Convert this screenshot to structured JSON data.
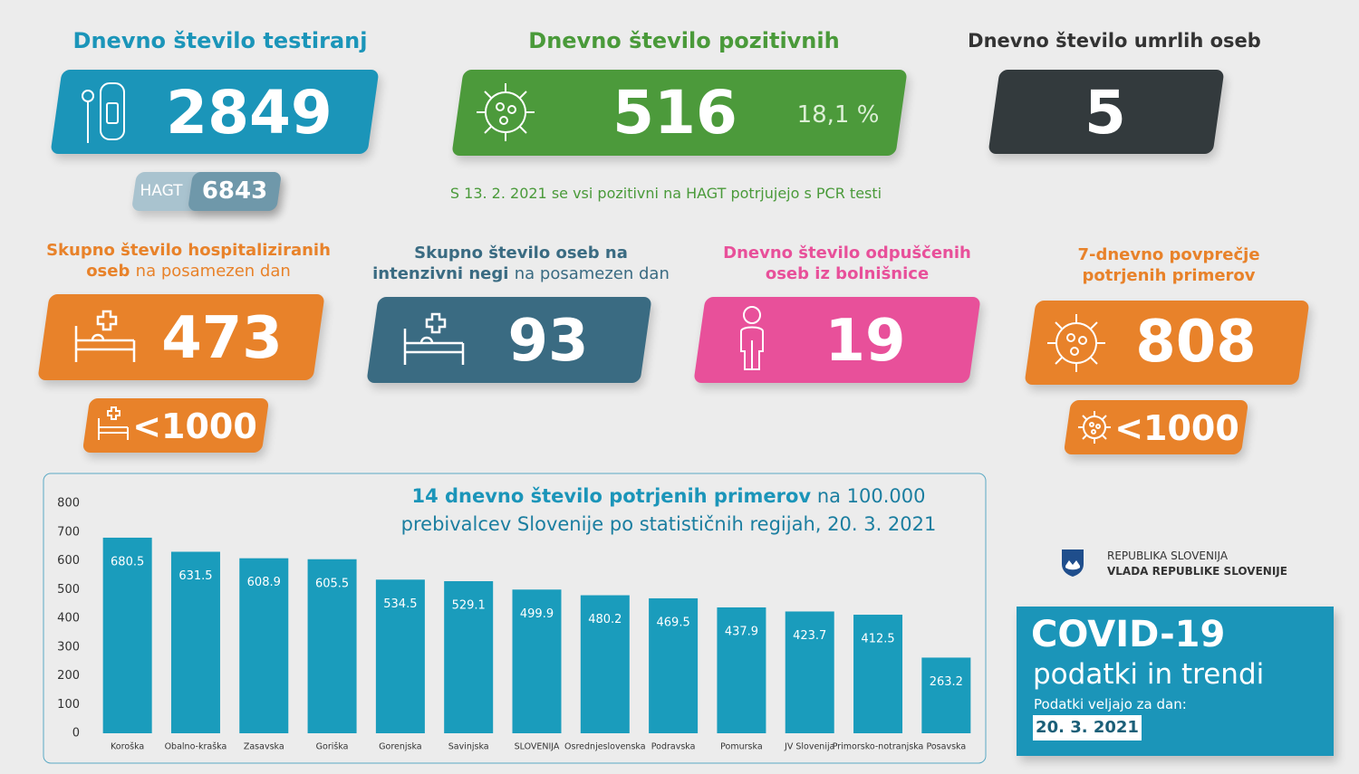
{
  "tests": {
    "title": "Dnevno število testiranj",
    "value": 2849,
    "hagt_label": "HAGT",
    "hagt_value": 6843
  },
  "positive": {
    "title": "Dnevno število pozitivnih",
    "value": 516,
    "share": "18,1 %",
    "note": "S 13. 2. 2021 se vsi pozitivni na HAGT potrjujejo s PCR testi"
  },
  "deaths": {
    "title": "Dnevno število umrlih oseb",
    "value": 5
  },
  "hospitalized": {
    "title": "Skupno število hospitaliziranih oseb",
    "title_rest": "na posamezen dan",
    "value": 473,
    "threshold": "<1000"
  },
  "icu": {
    "title": "Skupno število oseb na intenzivni negi",
    "title_rest": "na posamezen dan",
    "value": 93
  },
  "discharged": {
    "title": "Dnevno število odpuščenih oseb iz bolnišnice",
    "value": 19
  },
  "avg7": {
    "title": "7-dnevno povprečje potrjenih primerov",
    "value": 808,
    "threshold": "<1000"
  },
  "chart_data": {
    "type": "bar",
    "title": "14 dnevno število potrjenih primerov",
    "title_rest": "na 100.000",
    "subtitle": "prebivalcev Slovenije po statističnih regijah, 20. 3. 2021",
    "categories": [
      "Koroška",
      "Obalno-kraška",
      "Zasavska",
      "Goriška",
      "Gorenjska",
      "Savinjska",
      "SLOVENIJA",
      "Osrednjeslovenska",
      "Podravska",
      "Pomurska",
      "JV Slovenija",
      "Primorsko-notranjska",
      "Posavska"
    ],
    "values": [
      680.5,
      631.5,
      608.9,
      605.5,
      534.5,
      529.1,
      499.9,
      480.2,
      469.5,
      437.9,
      423.7,
      412.5,
      263.2
    ],
    "color": "#1a9cbc",
    "ylim": [
      0,
      800
    ],
    "yticks": [
      0,
      100,
      200,
      300,
      400,
      500,
      600,
      700,
      800
    ],
    "grid": false
  },
  "footer": {
    "org": "REPUBLIKA SLOVENIJA",
    "gov": "VLADA REPUBLIKE SLOVENIJE",
    "headline": "COVID-19",
    "subtitle": "podatki in trendi",
    "date_label": "Podatki veljajo za dan:",
    "date": "20. 3. 2021"
  }
}
